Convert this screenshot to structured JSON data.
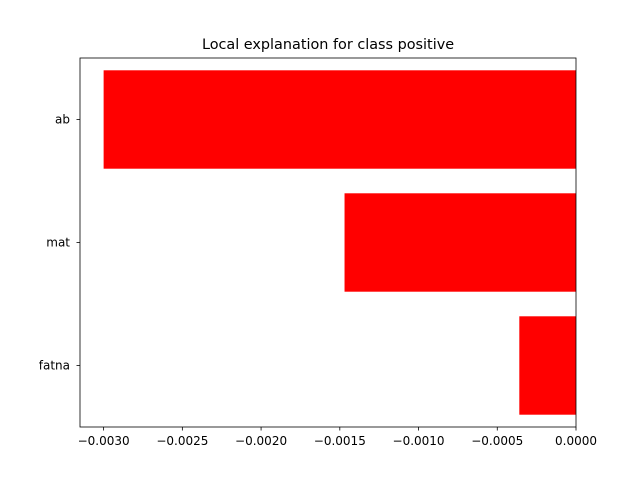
{
  "chart_data": {
    "type": "bar",
    "orientation": "horizontal",
    "title": "Local explanation for class positive",
    "xlabel": "",
    "ylabel": "",
    "categories": [
      "ab",
      "mat",
      "fatna"
    ],
    "values": [
      -0.003,
      -0.00147,
      -0.00036
    ],
    "xlim": [
      -0.00315,
      0.0
    ],
    "x_ticks": [
      -0.003,
      -0.0025,
      -0.002,
      -0.0015,
      -0.001,
      -0.0005,
      0.0
    ],
    "x_tick_labels": [
      "−0.0030",
      "−0.0025",
      "−0.0020",
      "−0.0015",
      "−0.0010",
      "−0.0005",
      "0.0000"
    ],
    "bar_color": "#ff0000",
    "grid": false,
    "legend": "none"
  }
}
